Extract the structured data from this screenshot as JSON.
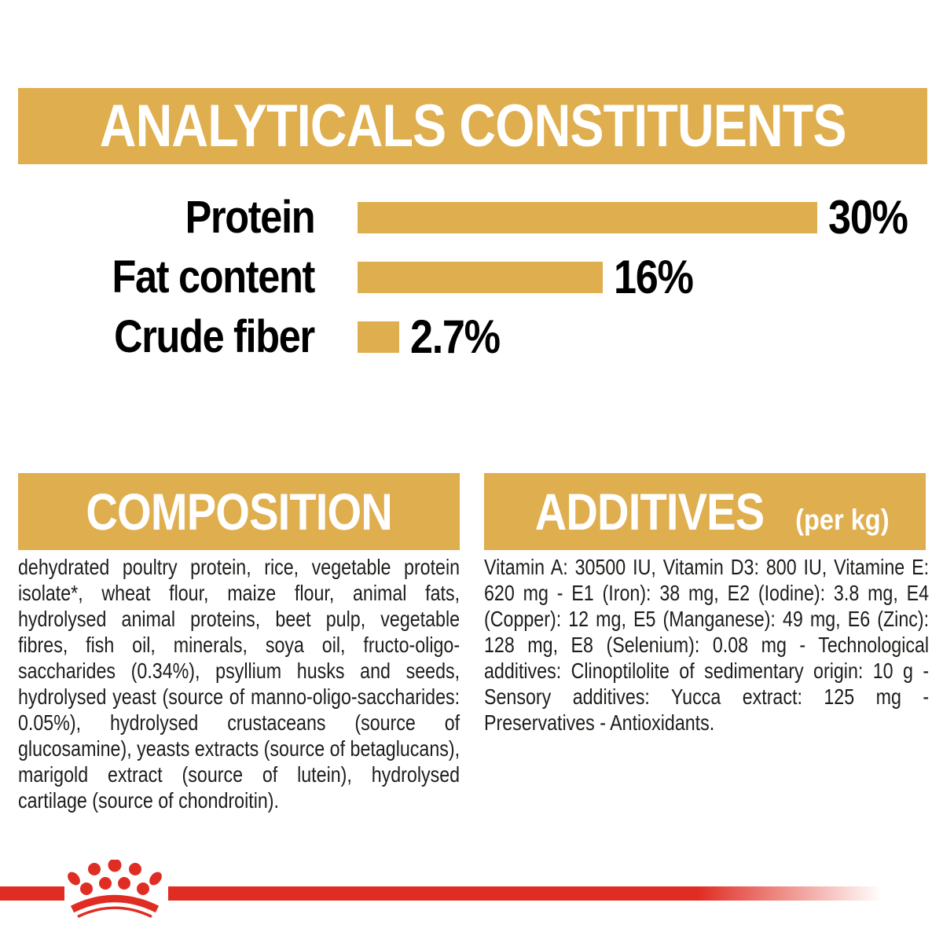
{
  "colors": {
    "gold": "#DFAE4E",
    "red": "#E02D23",
    "body_text": "#1D1D1B",
    "label_black": "#000000",
    "banner_text": "#FFFFFF",
    "page_bg": "#FFFFFF"
  },
  "analyticals": {
    "title": "ANALYTICALS CONSTITUENTS",
    "chart_data": {
      "type": "bar",
      "orientation": "horizontal",
      "title": "ANALYTICALS CONSTITUENTS",
      "categories": [
        "Protein",
        "Fat content",
        "Crude fiber"
      ],
      "values": [
        30,
        16,
        2.7
      ],
      "value_labels": [
        "30%",
        "16%",
        "2.7%"
      ],
      "unit": "%",
      "xlim": [
        0,
        30
      ],
      "grid": false,
      "legend": "none",
      "bar_color": "#DFAE4E"
    }
  },
  "composition": {
    "title": "COMPOSITION",
    "body": "dehydrated poultry protein, rice, vegetable protein isolate*, wheat flour, maize flour, animal fats, hydrolysed animal proteins, beet pulp, vegetable fibres, fish oil, minerals, soya oil, fructo-oligo-saccharides (0.34%), psyllium husks and seeds, hydrolysed yeast (source of manno-oligo-saccharides: 0.05%), hydrolysed crustaceans (source of glucosamine), yeasts extracts (source of betaglucans), marigold extract (source of lutein), hydrolysed cartilage (source of chondroitin)."
  },
  "additives": {
    "title": "ADDITIVES",
    "unit_suffix": "(per kg)",
    "body": "Vitamin A: 30500 IU, Vitamin D3: 800 IU, Vitamine E: 620 mg - E1 (Iron): 38 mg, E2 (Iodine): 3.8 mg, E4 (Copper): 12 mg, E5 (Manganese): 49 mg, E6 (Zinc): 128 mg, E8 (Selenium): 0.08 mg - Technological additives: Clinoptilolite of sedimentary origin: 10 g - Sensory additives: Yucca extract: 125 mg - Preservatives - Antioxidants.",
    "footer_logo": "royal-canin-crown"
  }
}
